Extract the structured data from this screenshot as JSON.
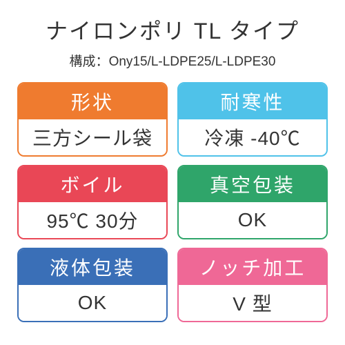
{
  "title": "ナイロンポリ TL タイプ",
  "composition_label": "構成：",
  "composition_value": "Ony15/L-LDPE25/L-LDPE30",
  "cells": [
    {
      "label": "形状",
      "value": "三方シール袋",
      "color": "#ef7b2f"
    },
    {
      "label": "耐寒性",
      "value": "冷凍 -40℃",
      "color": "#4fc2e9"
    },
    {
      "label": "ボイル",
      "value": "95℃ 30分",
      "color": "#e94756"
    },
    {
      "label": "真空包装",
      "value": "OK",
      "color": "#2fa56a"
    },
    {
      "label": "液体包装",
      "value": "OK",
      "color": "#3a6fb7"
    },
    {
      "label": "ノッチ加工",
      "value": "V 型",
      "color": "#ef6896"
    }
  ],
  "text_color": "#333333",
  "background": "#ffffff"
}
